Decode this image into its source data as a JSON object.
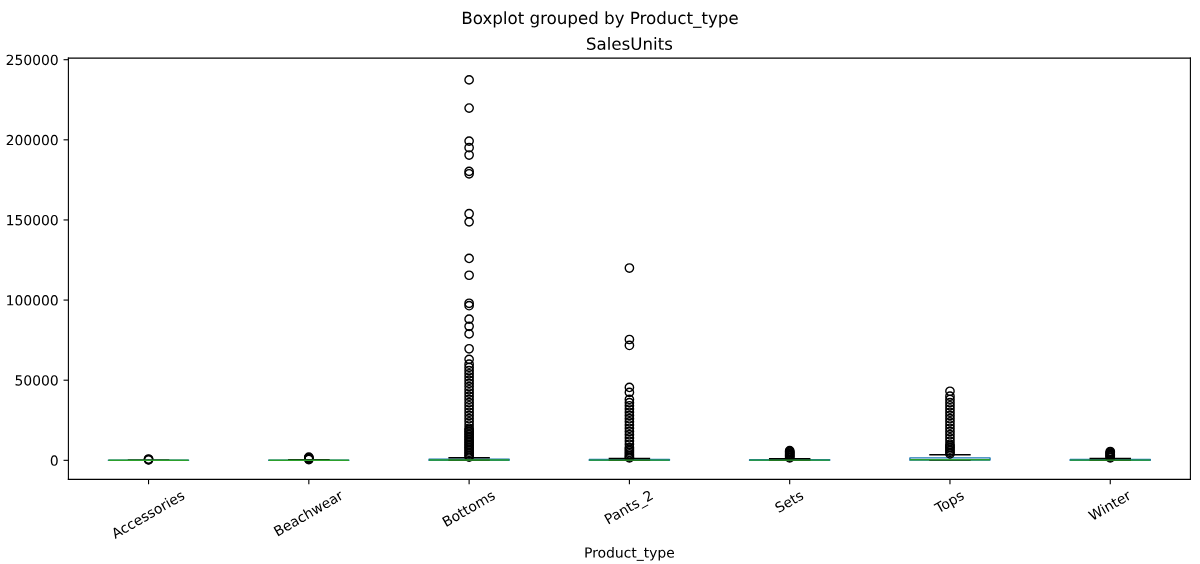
{
  "chart_data": {
    "type": "box",
    "title": "Boxplot grouped by Product_type",
    "subtitle": "SalesUnits",
    "xlabel": "Product_type",
    "categories": [
      "Accessories",
      "Beachwear",
      "Bottoms",
      "Pants_2",
      "Sets",
      "Tops",
      "Winter"
    ],
    "boxes": [
      {
        "q1": 5,
        "median": 20,
        "q3": 60,
        "high": 140,
        "outliers": [
          300,
          500,
          800
        ]
      },
      {
        "q1": 10,
        "median": 40,
        "q3": 150,
        "high": 350,
        "outliers": [
          500,
          800,
          1200,
          1600,
          2000
        ]
      },
      {
        "q1": 60,
        "median": 200,
        "q3": 700,
        "high": 1600,
        "outliers": [
          2000,
          3000,
          4000,
          5000,
          6000,
          7000,
          8000,
          9000,
          10000,
          11000,
          12000,
          13000,
          14000,
          15000,
          16000,
          17000,
          18000,
          19000,
          20000,
          22000,
          24000,
          26000,
          28000,
          30000,
          32000,
          34000,
          36000,
          38000,
          40000,
          42000,
          44000,
          46000,
          48000,
          50000,
          52000,
          54000,
          56000,
          58000,
          60000,
          63000,
          69600,
          78900,
          83600,
          88100,
          96500,
          98000,
          115500,
          126000,
          148800,
          153900,
          178800,
          180300,
          190500,
          195100,
          199200,
          219800,
          237400
        ]
      },
      {
        "q1": 40,
        "median": 150,
        "q3": 500,
        "high": 1200,
        "outliers": [
          1500,
          2000,
          3000,
          4000,
          5000,
          6000,
          7000,
          8000,
          10000,
          12000,
          14000,
          16000,
          18000,
          20000,
          22000,
          24000,
          26000,
          28000,
          30000,
          32000,
          34000,
          36000,
          38000,
          42400,
          45500,
          71700,
          75400,
          120000
        ]
      },
      {
        "q1": 30,
        "median": 120,
        "q3": 400,
        "high": 950,
        "outliers": [
          1500,
          2000,
          2500,
          3000,
          3500,
          4000,
          4500,
          5000,
          5500,
          6000
        ]
      },
      {
        "q1": 150,
        "median": 400,
        "q3": 1500,
        "high": 3500,
        "outliers": [
          4000,
          5000,
          6000,
          7000,
          8000,
          9000,
          10000,
          12000,
          14000,
          16000,
          18000,
          20000,
          22000,
          24000,
          26000,
          28000,
          30000,
          32000,
          34000,
          36000,
          38000,
          40000,
          43100
        ]
      },
      {
        "q1": 40,
        "median": 150,
        "q3": 500,
        "high": 1200,
        "outliers": [
          1500,
          2000,
          2500,
          3000,
          3500,
          4000,
          4500,
          5000,
          5500
        ]
      }
    ],
    "ylim": [
      -11900,
      251000
    ],
    "yticks": [
      0,
      50000,
      100000,
      150000,
      200000,
      250000
    ],
    "grid": false
  }
}
